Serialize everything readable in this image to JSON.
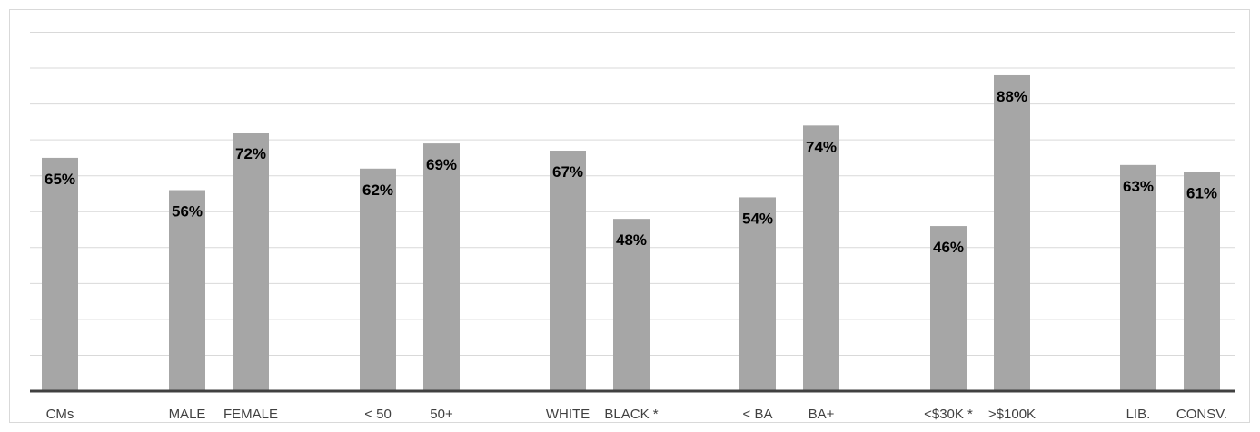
{
  "chart_data": {
    "type": "bar",
    "title": "",
    "xlabel": "",
    "ylabel": "",
    "ylim": [
      0,
      100
    ],
    "grid": true,
    "legend": "none",
    "value_format": "percent",
    "colors": {
      "bar": "#a6a6a6",
      "grid": "#d9d9d9",
      "baseline": "#404040",
      "label": "#404040"
    },
    "categories": [
      "CMs",
      "MALE",
      "FEMALE",
      "< 50",
      "50+",
      "WHITE",
      "BLACK *",
      "< BA",
      "BA+",
      "<$30K *",
      ">$100K",
      "LIB.",
      "CONSV."
    ],
    "values": [
      65,
      56,
      72,
      62,
      69,
      67,
      48,
      54,
      74,
      46,
      88,
      63,
      61
    ],
    "value_labels": [
      "65%",
      "56%",
      "72%",
      "62%",
      "69%",
      "67%",
      "48%",
      "54%",
      "74%",
      "46%",
      "88%",
      "63%",
      "61%"
    ]
  }
}
